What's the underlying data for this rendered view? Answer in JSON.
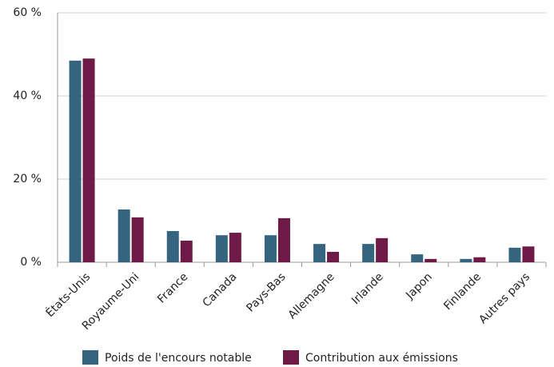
{
  "chart_data": {
    "type": "bar",
    "categories": [
      "États-Unis",
      "Royaume-Uni",
      "France",
      "Canada",
      "Pays-Bas",
      "Allemagne",
      "Irlande",
      "Japon",
      "Finlande",
      "Autres pays"
    ],
    "series": [
      {
        "name": "Poids de l'encours notable",
        "color": "#35647e",
        "values": [
          48.5,
          12.7,
          7.5,
          6.5,
          6.5,
          4.4,
          4.4,
          1.9,
          0.8,
          3.5
        ]
      },
      {
        "name": "Contribution aux émissions",
        "color": "#6d1a46",
        "values": [
          49,
          10.8,
          5.2,
          7.1,
          10.6,
          2.5,
          5.8,
          0.8,
          1.2,
          3.8
        ]
      }
    ],
    "ylim": [
      0,
      60
    ],
    "yticks": [
      {
        "value": 0,
        "label": "0 %"
      },
      {
        "value": 20,
        "label": "20 %"
      },
      {
        "value": 40,
        "label": "40 %"
      },
      {
        "value": 60,
        "label": "60 %"
      }
    ],
    "grid": true
  }
}
